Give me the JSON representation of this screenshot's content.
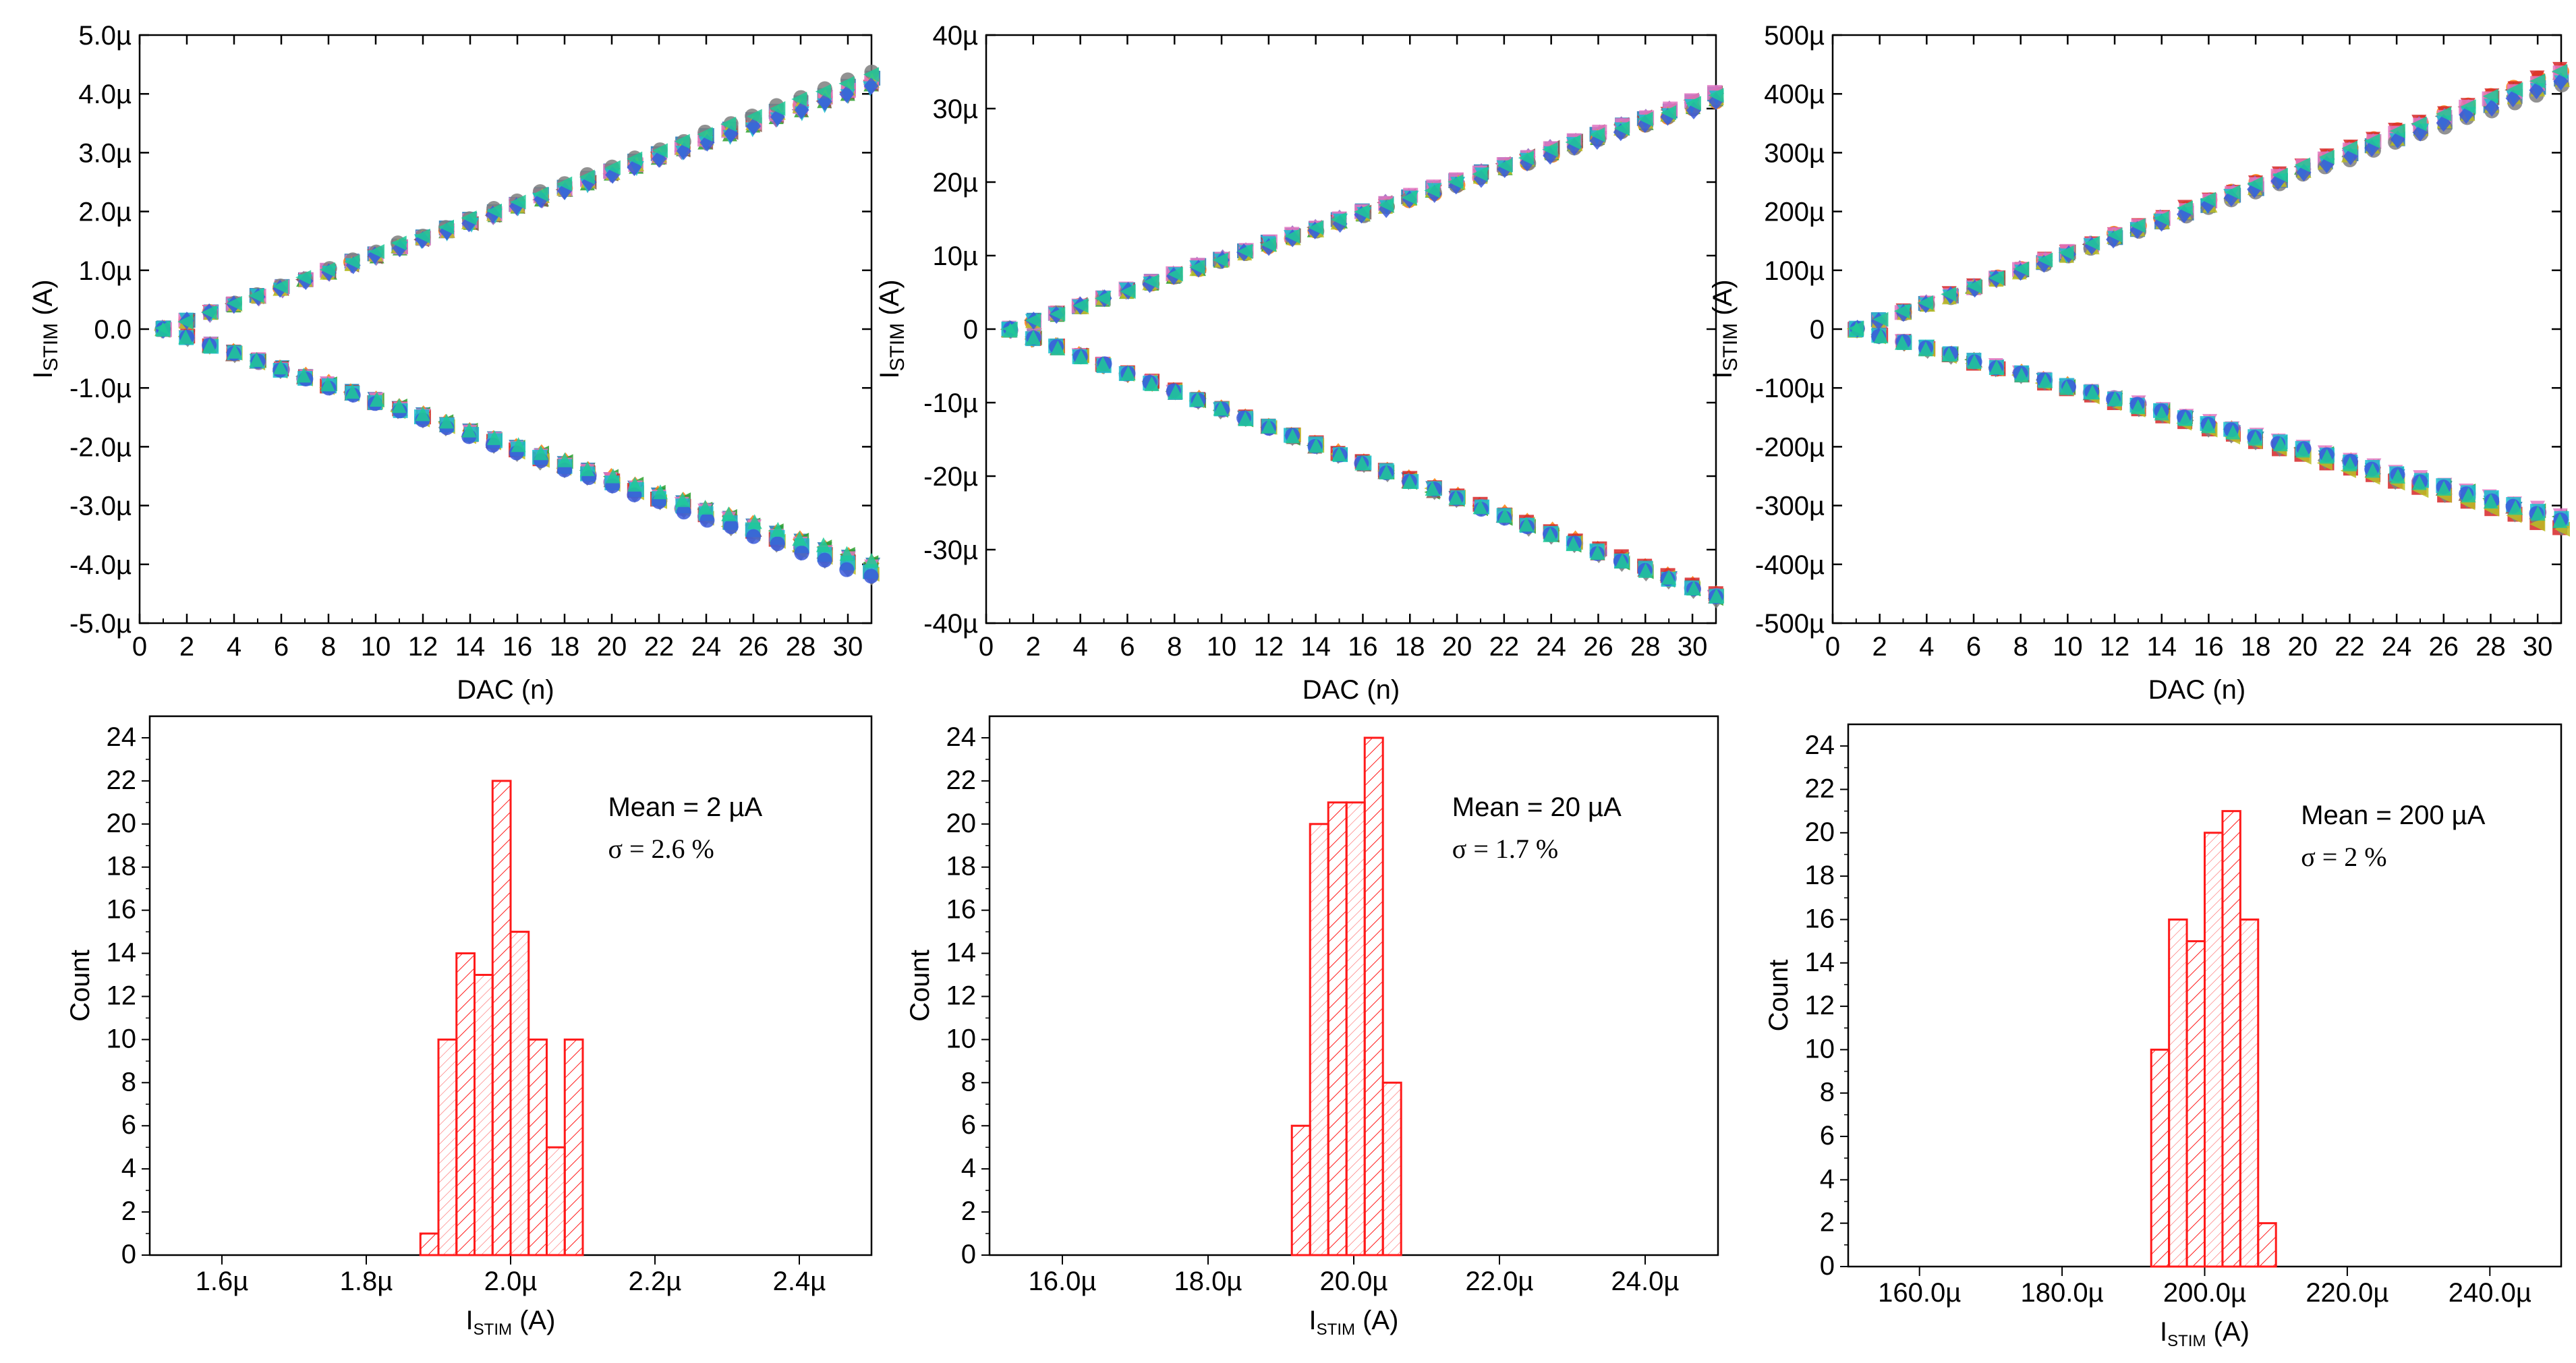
{
  "figure": {
    "charts": [
      {
        "type": "scatter",
        "role": "sweep",
        "xlabel": "DAC (n)",
        "ylabel_main": "I",
        "ylabel_sub": "STIM",
        "ylabel_unit": " (A)",
        "xlim": [
          0,
          31
        ],
        "xticks": [
          0,
          2,
          4,
          6,
          8,
          10,
          12,
          14,
          16,
          18,
          20,
          22,
          24,
          26,
          28,
          30
        ],
        "ylim": [
          -5,
          5
        ],
        "yticks": [
          5,
          4,
          3,
          2,
          1,
          0,
          -1,
          -2,
          -3,
          -4,
          -5
        ],
        "ytick_labels": [
          "5.0µ",
          "4.0µ",
          "3.0µ",
          "2.0µ",
          "1.0µ",
          "0.0",
          "-1.0µ",
          "-2.0µ",
          "-3.0µ",
          "-4.0µ",
          "-5.0µ"
        ],
        "pos_slope": 0.141,
        "neg_slope": -0.136,
        "spread": 0.035,
        "y_units": "µA",
        "channels": "multiple channels, n = 1..31"
      },
      {
        "type": "scatter",
        "role": "sweep",
        "xlabel": "DAC (n)",
        "ylabel_main": "I",
        "ylabel_sub": "STIM",
        "ylabel_unit": " (A)",
        "xlim": [
          0,
          31
        ],
        "xticks": [
          0,
          2,
          4,
          6,
          8,
          10,
          12,
          14,
          16,
          18,
          20,
          22,
          24,
          26,
          28,
          30
        ],
        "ylim": [
          -40,
          40
        ],
        "yticks": [
          40,
          30,
          20,
          10,
          0,
          -10,
          -20,
          -30,
          -40
        ],
        "ytick_labels": [
          "40µ",
          "30µ",
          "20µ",
          "10µ",
          "0",
          "-10µ",
          "-20µ",
          "-30µ",
          "-40µ"
        ],
        "pos_slope": 1.05,
        "neg_slope": -1.22,
        "spread": 0.02,
        "y_units": "µA",
        "channels": "multiple channels, n = 1..31"
      },
      {
        "type": "scatter",
        "role": "sweep",
        "xlabel": "DAC (n)",
        "ylabel_main": "I",
        "ylabel_sub": "STIM",
        "ylabel_unit": " (A)",
        "xlim": [
          0,
          31
        ],
        "xticks": [
          0,
          2,
          4,
          6,
          8,
          10,
          12,
          14,
          16,
          18,
          20,
          22,
          24,
          26,
          28,
          30
        ],
        "ylim": [
          -500,
          500
        ],
        "yticks": [
          500,
          400,
          300,
          200,
          100,
          0,
          -100,
          -200,
          -300,
          -400,
          -500
        ],
        "ytick_labels": [
          "500µ",
          "400µ",
          "300µ",
          "200µ",
          "100µ",
          "0",
          "-100µ",
          "-200µ",
          "-300µ",
          "-400µ",
          "-500µ"
        ],
        "pos_slope": 14.2,
        "neg_slope": -11.0,
        "spread": 0.04,
        "y_units": "µA",
        "channels": "multiple channels, n = 1..31"
      },
      {
        "type": "bar",
        "role": "histogram",
        "xlabel_main": "I",
        "xlabel_sub": "STIM",
        "xlabel_unit": " (A)",
        "ylabel": "Count",
        "xlim": [
          1.5,
          2.5
        ],
        "xticks": [
          1.6,
          1.8,
          2.0,
          2.2,
          2.4
        ],
        "xtick_labels": [
          "1.6µ",
          "1.8µ",
          "2.0µ",
          "2.2µ",
          "2.4µ"
        ],
        "ylim": [
          0,
          25
        ],
        "yticks": [
          0,
          2,
          4,
          6,
          8,
          10,
          12,
          14,
          16,
          18,
          20,
          22,
          24
        ],
        "x_units": "µA",
        "bin_width": 0.025,
        "bin_starts": [
          1.875,
          1.9,
          1.925,
          1.95,
          1.975,
          2.0,
          2.025,
          2.05,
          2.075
        ],
        "counts": [
          1,
          10,
          14,
          13,
          22,
          15,
          10,
          5,
          10
        ],
        "mean_label": "Mean = 2 µA",
        "sigma_label": "σ = 2.6 %"
      },
      {
        "type": "bar",
        "role": "histogram",
        "xlabel_main": "I",
        "xlabel_sub": "STIM",
        "xlabel_unit": " (A)",
        "ylabel": "Count",
        "xlim": [
          15,
          25
        ],
        "xticks": [
          16,
          18,
          20,
          22,
          24
        ],
        "xtick_labels": [
          "16.0µ",
          "18.0µ",
          "20.0µ",
          "22.0µ",
          "24.0µ"
        ],
        "ylim": [
          0,
          25
        ],
        "yticks": [
          0,
          2,
          4,
          6,
          8,
          10,
          12,
          14,
          16,
          18,
          20,
          22,
          24
        ],
        "x_units": "µA",
        "bin_width": 0.25,
        "bin_starts": [
          19.15,
          19.4,
          19.65,
          19.9,
          20.15,
          20.4
        ],
        "counts": [
          6,
          20,
          21,
          21,
          24,
          8
        ],
        "mean_label": "Mean = 20 µA",
        "sigma_label": "σ = 1.7 %"
      },
      {
        "type": "bar",
        "role": "histogram",
        "xlabel_main": "I",
        "xlabel_sub": "STIM",
        "xlabel_unit": " (A)",
        "ylabel": "Count",
        "xlim": [
          150,
          250
        ],
        "xticks": [
          160,
          180,
          200,
          220,
          240
        ],
        "xtick_labels": [
          "160.0µ",
          "180.0µ",
          "200.0µ",
          "220.0µ",
          "240.0µ"
        ],
        "ylim": [
          0,
          25
        ],
        "yticks": [
          0,
          2,
          4,
          6,
          8,
          10,
          12,
          14,
          16,
          18,
          20,
          22,
          24
        ],
        "x_units": "µA",
        "bin_width": 2.5,
        "bin_starts": [
          192.5,
          195,
          197.5,
          200,
          202.5,
          205,
          207.5
        ],
        "counts": [
          10,
          16,
          15,
          20,
          21,
          16,
          2
        ],
        "mean_label": "Mean = 200 µA",
        "sigma_label": "σ = 2 %"
      }
    ]
  },
  "chart_data": [
    {
      "type": "scatter",
      "xlabel": "DAC (n)",
      "ylabel": "ISTIM (A)",
      "x_range": [
        1,
        31
      ],
      "ylim": [
        "-5.0µ",
        "5.0µ"
      ],
      "series": [
        {
          "name": "positive ramp",
          "approx": "0 to +4.4 µA"
        },
        {
          "name": "negative ramp",
          "approx": "0 to -4.2 µA"
        }
      ]
    },
    {
      "type": "scatter",
      "xlabel": "DAC (n)",
      "ylabel": "ISTIM (A)",
      "x_range": [
        1,
        31
      ],
      "ylim": [
        "-40µ",
        "40µ"
      ],
      "series": [
        {
          "name": "positive ramp",
          "approx": "0 to +31 µA"
        },
        {
          "name": "negative ramp",
          "approx": "0 to -36 µA"
        }
      ]
    },
    {
      "type": "scatter",
      "xlabel": "DAC (n)",
      "ylabel": "ISTIM (A)",
      "x_range": [
        1,
        31
      ],
      "ylim": [
        "-500µ",
        "500µ"
      ],
      "series": [
        {
          "name": "positive ramp",
          "approx": "0 to +420 µA"
        },
        {
          "name": "negative ramp",
          "approx": "0 to -330 µA"
        }
      ]
    },
    {
      "type": "bar",
      "title": "Mean = 2 µA, σ = 2.6 %",
      "xlabel": "ISTIM (A)",
      "ylabel": "Count",
      "bins_µA": [
        1.875,
        1.9,
        1.925,
        1.95,
        1.975,
        2.0,
        2.025,
        2.05,
        2.075
      ],
      "counts": [
        1,
        10,
        14,
        13,
        22,
        15,
        10,
        5,
        10
      ]
    },
    {
      "type": "bar",
      "title": "Mean = 20 µA, σ = 1.7 %",
      "xlabel": "ISTIM (A)",
      "ylabel": "Count",
      "bins_µA": [
        19.15,
        19.4,
        19.65,
        19.9,
        20.15,
        20.4
      ],
      "counts": [
        6,
        20,
        21,
        21,
        24,
        8
      ]
    },
    {
      "type": "bar",
      "title": "Mean = 200 µA, σ = 2 %",
      "xlabel": "ISTIM (A)",
      "ylabel": "Count",
      "bins_µA": [
        192.5,
        195,
        197.5,
        200,
        202.5,
        205,
        207.5
      ],
      "counts": [
        10,
        16,
        15,
        20,
        21,
        16,
        2
      ]
    }
  ],
  "palette": {
    "series": [
      "#1f77b4",
      "#ff7f0e",
      "#2ca02c",
      "#d62728",
      "#9467bd",
      "#8c564b",
      "#e377c2",
      "#7f7f7f",
      "#bcbd22",
      "#17becf",
      "#3b5bdb",
      "#20c997",
      "#6f42c1",
      "#f06595",
      "#5c940d"
    ],
    "histogram": "#ff1a1a"
  }
}
